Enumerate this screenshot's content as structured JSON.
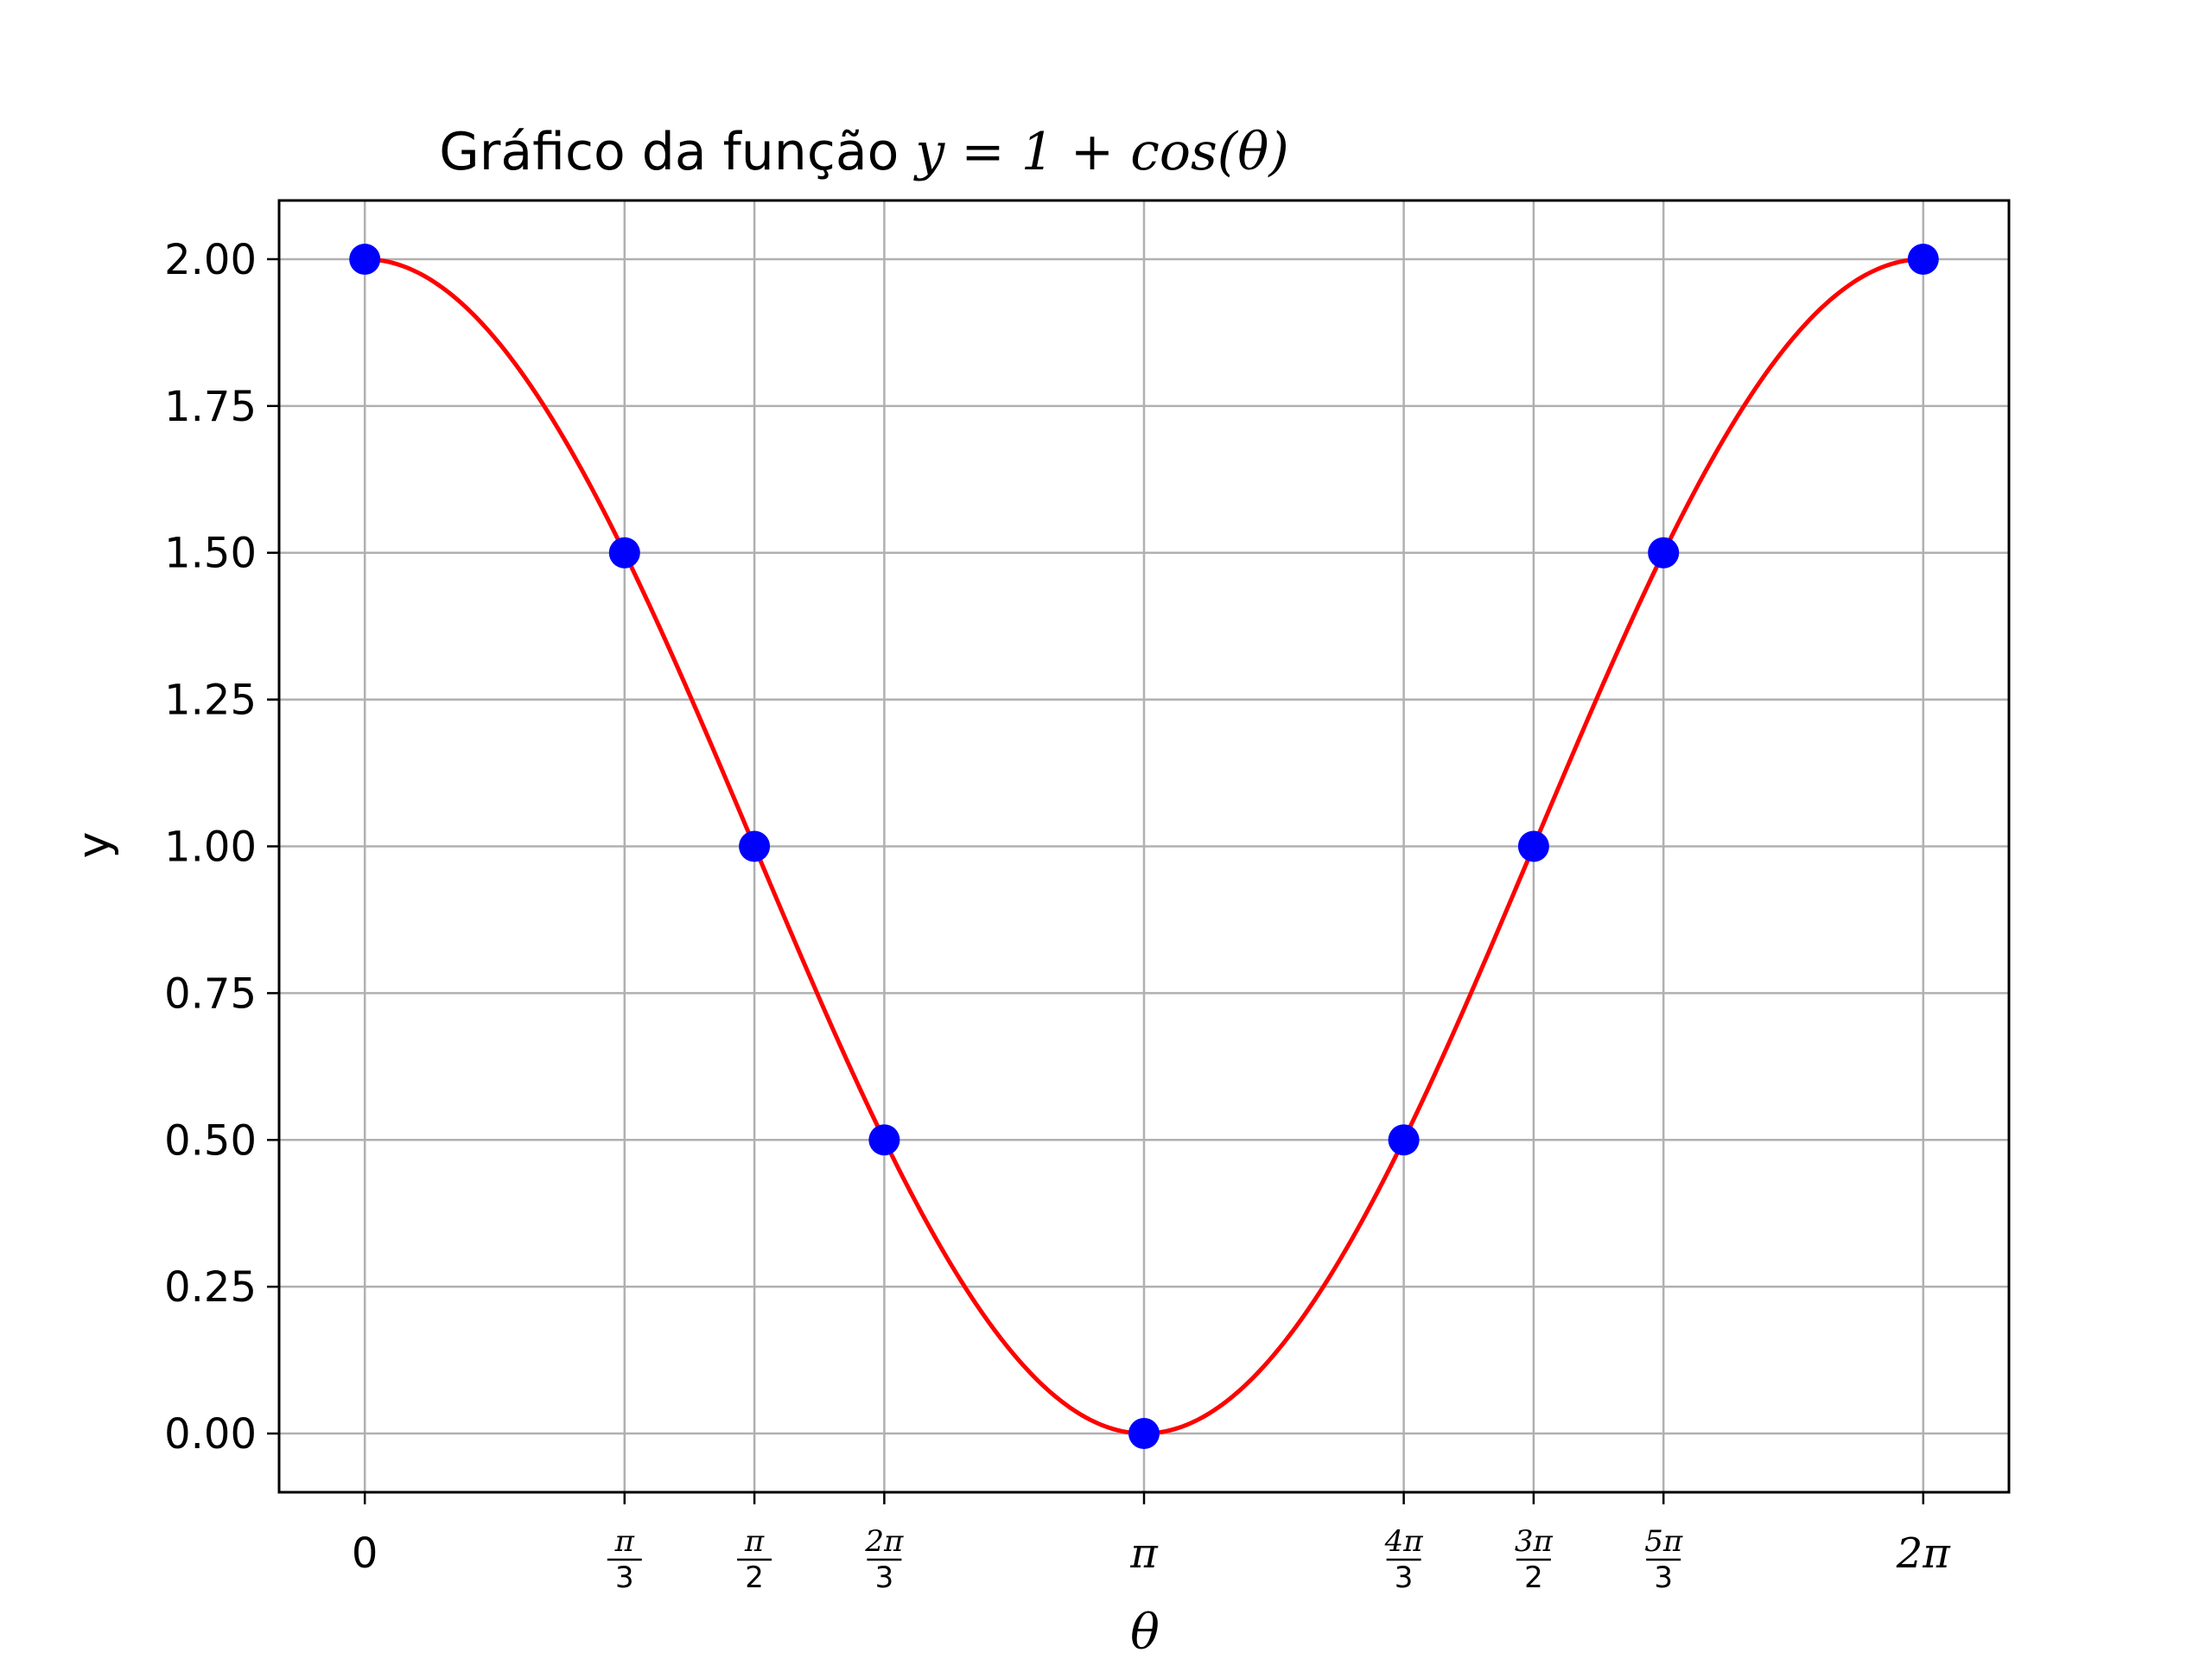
{
  "chart_data": {
    "type": "line",
    "title": "Gráfico da função y = 1 + cos(θ)",
    "title_prefix": "Gráfico da função ",
    "title_math": "y = 1 + cos(θ)",
    "xlabel": "θ",
    "ylabel": "y",
    "xlim": [
      -0.3456,
      6.6288
    ],
    "ylim": [
      -0.1,
      2.1
    ],
    "grid": true,
    "x_ticks": [
      {
        "value": 0,
        "label": "0"
      },
      {
        "value": 1.0472,
        "num": "π",
        "den": "3"
      },
      {
        "value": 1.5708,
        "num": "π",
        "den": "2"
      },
      {
        "value": 2.0944,
        "num": "2π",
        "den": "3"
      },
      {
        "value": 3.1416,
        "label": "π"
      },
      {
        "value": 4.1888,
        "num": "4π",
        "den": "3"
      },
      {
        "value": 4.7124,
        "num": "3π",
        "den": "2"
      },
      {
        "value": 5.236,
        "num": "5π",
        "den": "3"
      },
      {
        "value": 6.2832,
        "label": "2π"
      }
    ],
    "y_ticks": [
      {
        "value": 0.0,
        "label": "0.00"
      },
      {
        "value": 0.25,
        "label": "0.25"
      },
      {
        "value": 0.5,
        "label": "0.50"
      },
      {
        "value": 0.75,
        "label": "0.75"
      },
      {
        "value": 1.0,
        "label": "1.00"
      },
      {
        "value": 1.25,
        "label": "1.25"
      },
      {
        "value": 1.5,
        "label": "1.50"
      },
      {
        "value": 1.75,
        "label": "1.75"
      },
      {
        "value": 2.0,
        "label": "2.00"
      }
    ],
    "series": [
      {
        "kind": "curve",
        "color": "#ff0000",
        "function": "1 + cos(θ)",
        "x_range": [
          0,
          6.2832
        ]
      },
      {
        "kind": "points",
        "color": "#0000ff",
        "x": [
          0,
          1.0472,
          1.5708,
          2.0944,
          3.1416,
          4.1888,
          4.7124,
          5.236,
          6.2832
        ],
        "y": [
          2.0,
          1.5,
          1.0,
          0.5,
          0.0,
          0.5,
          1.0,
          1.5,
          2.0
        ]
      }
    ],
    "colors": {
      "grid": "#b0b0b0",
      "axes": "#000000",
      "background": "#ffffff"
    }
  }
}
